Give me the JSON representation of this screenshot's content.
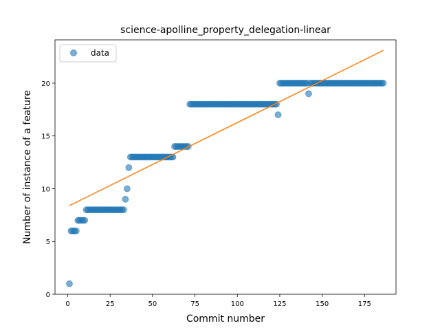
{
  "chart_data": {
    "type": "scatter",
    "title": "science-apolline_property_delegation-linear",
    "xlabel": "Commit number",
    "ylabel": "Number of instance of a feature",
    "xlim": [
      -7.5,
      193.5
    ],
    "ylim": [
      0,
      24.1
    ],
    "xticks": [
      0,
      25,
      50,
      75,
      100,
      125,
      150,
      175
    ],
    "yticks": [
      0,
      5,
      10,
      15,
      20
    ],
    "grid": false,
    "legend": {
      "placement": "top-left",
      "entries": [
        "data"
      ]
    },
    "colors": {
      "points": "#1f77b4",
      "fit_line": "#ff7f0e"
    },
    "series": [
      {
        "name": "data",
        "kind": "scatter",
        "segments": [
          {
            "x_start": 1,
            "x_end": 1,
            "y": 1
          },
          {
            "x_start": 2,
            "x_end": 5,
            "y": 6
          },
          {
            "x_start": 6,
            "x_end": 10,
            "y": 7
          },
          {
            "x_start": 11,
            "x_end": 33,
            "y": 8
          },
          {
            "x_start": 34,
            "x_end": 34,
            "y": 9
          },
          {
            "x_start": 35,
            "x_end": 35,
            "y": 10
          },
          {
            "x_start": 36,
            "x_end": 36,
            "y": 12
          },
          {
            "x_start": 37,
            "x_end": 62,
            "y": 13
          },
          {
            "x_start": 63,
            "x_end": 71,
            "y": 14
          },
          {
            "x_start": 72,
            "x_end": 123,
            "y": 18
          },
          {
            "x_start": 124,
            "x_end": 124,
            "y": 17
          },
          {
            "x_start": 125,
            "x_end": 141,
            "y": 20
          },
          {
            "x_start": 142,
            "x_end": 142,
            "y": 19
          },
          {
            "x_start": 143,
            "x_end": 186,
            "y": 20
          }
        ]
      },
      {
        "kind": "line",
        "x": [
          1,
          186
        ],
        "y": [
          8.4,
          23.1
        ]
      }
    ]
  }
}
